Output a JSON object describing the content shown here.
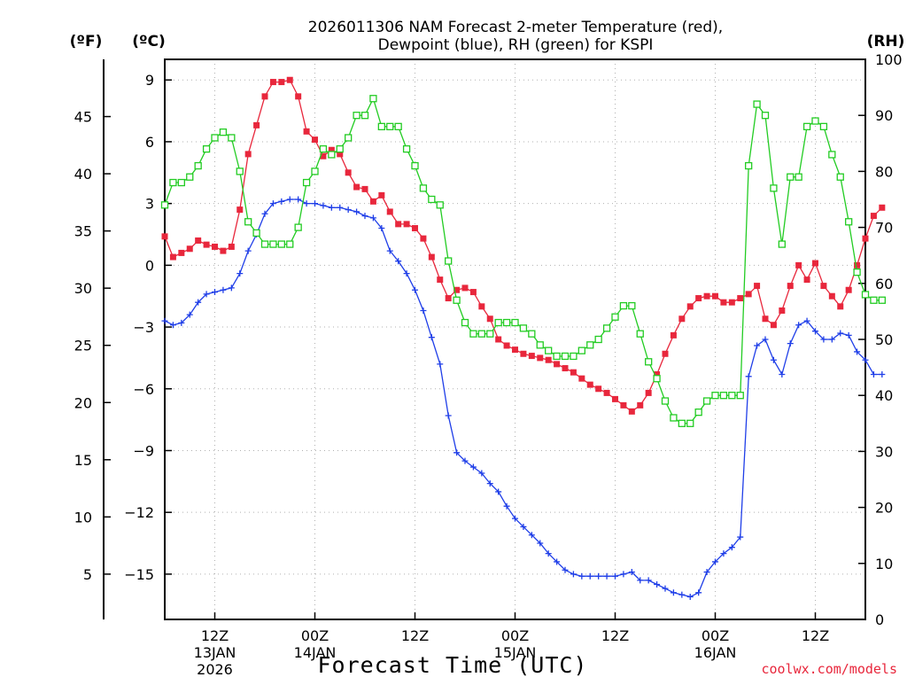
{
  "chart_data": {
    "type": "line",
    "title_line1": "2026011306 NAM Forecast 2-meter Temperature (red),",
    "title_line2": "Dewpoint (blue), RH (green) for KSPI",
    "unit_f": "(ºF)",
    "unit_c": "(ºC)",
    "unit_rh": "(RH)",
    "xlabel": "Forecast Time (UTC)",
    "credit": "coolwx.com/models",
    "x_range_hours": [
      6,
      90
    ],
    "y_c_range": [
      -17.2,
      10.0
    ],
    "rh_range": [
      0,
      100
    ],
    "f_ticks": [
      "5",
      "10",
      "15",
      "20",
      "25",
      "30",
      "35",
      "40",
      "45"
    ],
    "c_ticks": [
      "−15",
      "−12",
      "−9",
      "−6",
      "−3",
      "0",
      "3",
      "6",
      "9"
    ],
    "rh_ticks": [
      "0",
      "10",
      "20",
      "30",
      "40",
      "50",
      "60",
      "70",
      "80",
      "90",
      "100"
    ],
    "x_ticks": [
      {
        "hour": 12,
        "l1": "12Z",
        "l2": "13JAN",
        "l3": "2026"
      },
      {
        "hour": 24,
        "l1": "00Z",
        "l2": "14JAN",
        "l3": ""
      },
      {
        "hour": 36,
        "l1": "12Z",
        "l2": "",
        "l3": ""
      },
      {
        "hour": 48,
        "l1": "00Z",
        "l2": "15JAN",
        "l3": ""
      },
      {
        "hour": 60,
        "l1": "12Z",
        "l2": "",
        "l3": ""
      },
      {
        "hour": 72,
        "l1": "00Z",
        "l2": "16JAN",
        "l3": ""
      },
      {
        "hour": 84,
        "l1": "12Z",
        "l2": "",
        "l3": ""
      }
    ],
    "series": [
      {
        "name": "Temperature",
        "unit": "C",
        "color": "#e8273c",
        "marker": "filled-square",
        "points": [
          [
            6,
            1.4
          ],
          [
            7,
            0.4
          ],
          [
            8,
            0.6
          ],
          [
            9,
            0.8
          ],
          [
            10,
            1.2
          ],
          [
            11,
            1.0
          ],
          [
            12,
            0.9
          ],
          [
            13,
            0.7
          ],
          [
            14,
            0.9
          ],
          [
            15,
            2.7
          ],
          [
            16,
            5.4
          ],
          [
            17,
            6.8
          ],
          [
            18,
            8.2
          ],
          [
            19,
            8.9
          ],
          [
            20,
            8.9
          ],
          [
            21,
            9.0
          ],
          [
            22,
            8.2
          ],
          [
            23,
            6.5
          ],
          [
            24,
            6.1
          ],
          [
            25,
            5.3
          ],
          [
            26,
            5.6
          ],
          [
            27,
            5.4
          ],
          [
            28,
            4.5
          ],
          [
            29,
            3.8
          ],
          [
            30,
            3.7
          ],
          [
            31,
            3.1
          ],
          [
            32,
            3.4
          ],
          [
            33,
            2.6
          ],
          [
            34,
            2.0
          ],
          [
            35,
            2.0
          ],
          [
            36,
            1.8
          ],
          [
            37,
            1.3
          ],
          [
            38,
            0.4
          ],
          [
            39,
            -0.7
          ],
          [
            40,
            -1.6
          ],
          [
            41,
            -1.2
          ],
          [
            42,
            -1.1
          ],
          [
            43,
            -1.3
          ],
          [
            44,
            -2.0
          ],
          [
            45,
            -2.6
          ],
          [
            46,
            -3.6
          ],
          [
            47,
            -3.9
          ],
          [
            48,
            -4.1
          ],
          [
            49,
            -4.3
          ],
          [
            50,
            -4.4
          ],
          [
            51,
            -4.5
          ],
          [
            52,
            -4.6
          ],
          [
            53,
            -4.8
          ],
          [
            54,
            -5.0
          ],
          [
            55,
            -5.2
          ],
          [
            56,
            -5.5
          ],
          [
            57,
            -5.8
          ],
          [
            58,
            -6.0
          ],
          [
            59,
            -6.2
          ],
          [
            60,
            -6.5
          ],
          [
            61,
            -6.8
          ],
          [
            62,
            -7.1
          ],
          [
            63,
            -6.8
          ],
          [
            64,
            -6.2
          ],
          [
            65,
            -5.3
          ],
          [
            66,
            -4.3
          ],
          [
            67,
            -3.4
          ],
          [
            68,
            -2.6
          ],
          [
            69,
            -2.0
          ],
          [
            70,
            -1.6
          ],
          [
            71,
            -1.5
          ],
          [
            72,
            -1.5
          ],
          [
            73,
            -1.8
          ],
          [
            74,
            -1.8
          ],
          [
            75,
            -1.6
          ],
          [
            76,
            -1.4
          ],
          [
            77,
            -1.0
          ],
          [
            78,
            -2.6
          ],
          [
            79,
            -2.9
          ],
          [
            80,
            -2.2
          ],
          [
            81,
            -1.0
          ],
          [
            82,
            0.0
          ],
          [
            83,
            -0.7
          ],
          [
            84,
            0.1
          ],
          [
            85,
            -1.0
          ],
          [
            86,
            -1.5
          ],
          [
            87,
            -2.0
          ],
          [
            88,
            -1.2
          ],
          [
            89,
            0.0
          ],
          [
            90,
            1.3
          ],
          [
            91,
            2.4
          ],
          [
            92,
            2.8
          ]
        ]
      },
      {
        "name": "Dewpoint",
        "unit": "C",
        "color": "#1f3ee8",
        "marker": "plus",
        "points": [
          [
            6,
            -2.7
          ],
          [
            7,
            -2.9
          ],
          [
            8,
            -2.8
          ],
          [
            9,
            -2.4
          ],
          [
            10,
            -1.8
          ],
          [
            11,
            -1.4
          ],
          [
            12,
            -1.3
          ],
          [
            13,
            -1.2
          ],
          [
            14,
            -1.1
          ],
          [
            15,
            -0.4
          ],
          [
            16,
            0.7
          ],
          [
            17,
            1.5
          ],
          [
            18,
            2.5
          ],
          [
            19,
            3.0
          ],
          [
            20,
            3.1
          ],
          [
            21,
            3.2
          ],
          [
            22,
            3.2
          ],
          [
            23,
            3.0
          ],
          [
            24,
            3.0
          ],
          [
            25,
            2.9
          ],
          [
            26,
            2.8
          ],
          [
            27,
            2.8
          ],
          [
            28,
            2.7
          ],
          [
            29,
            2.6
          ],
          [
            30,
            2.4
          ],
          [
            31,
            2.3
          ],
          [
            32,
            1.8
          ],
          [
            33,
            0.7
          ],
          [
            34,
            0.2
          ],
          [
            35,
            -0.4
          ],
          [
            36,
            -1.2
          ],
          [
            37,
            -2.2
          ],
          [
            38,
            -3.5
          ],
          [
            39,
            -4.8
          ],
          [
            40,
            -7.3
          ],
          [
            41,
            -9.1
          ],
          [
            42,
            -9.5
          ],
          [
            43,
            -9.8
          ],
          [
            44,
            -10.1
          ],
          [
            45,
            -10.6
          ],
          [
            46,
            -11.0
          ],
          [
            47,
            -11.7
          ],
          [
            48,
            -12.3
          ],
          [
            49,
            -12.7
          ],
          [
            50,
            -13.1
          ],
          [
            51,
            -13.5
          ],
          [
            52,
            -14.0
          ],
          [
            53,
            -14.4
          ],
          [
            54,
            -14.8
          ],
          [
            55,
            -15.0
          ],
          [
            56,
            -15.1
          ],
          [
            57,
            -15.1
          ],
          [
            58,
            -15.1
          ],
          [
            59,
            -15.1
          ],
          [
            60,
            -15.1
          ],
          [
            61,
            -15.0
          ],
          [
            62,
            -14.9
          ],
          [
            63,
            -15.3
          ],
          [
            64,
            -15.3
          ],
          [
            65,
            -15.5
          ],
          [
            66,
            -15.7
          ],
          [
            67,
            -15.9
          ],
          [
            68,
            -16.0
          ],
          [
            69,
            -16.1
          ],
          [
            70,
            -15.9
          ],
          [
            71,
            -14.9
          ],
          [
            72,
            -14.4
          ],
          [
            73,
            -14.0
          ],
          [
            74,
            -13.7
          ],
          [
            75,
            -13.2
          ],
          [
            76,
            -5.4
          ],
          [
            77,
            -3.9
          ],
          [
            78,
            -3.6
          ],
          [
            79,
            -4.6
          ],
          [
            80,
            -5.3
          ],
          [
            81,
            -3.8
          ],
          [
            82,
            -2.9
          ],
          [
            83,
            -2.7
          ],
          [
            84,
            -3.2
          ],
          [
            85,
            -3.6
          ],
          [
            86,
            -3.6
          ],
          [
            87,
            -3.3
          ],
          [
            88,
            -3.4
          ],
          [
            89,
            -4.2
          ],
          [
            90,
            -4.6
          ],
          [
            91,
            -5.3
          ],
          [
            92,
            -5.3
          ]
        ]
      },
      {
        "name": "RH",
        "unit": "%",
        "color": "#22cc22",
        "marker": "open-square",
        "points": [
          [
            6,
            74
          ],
          [
            7,
            78
          ],
          [
            8,
            78
          ],
          [
            9,
            79
          ],
          [
            10,
            81
          ],
          [
            11,
            84
          ],
          [
            12,
            86
          ],
          [
            13,
            87
          ],
          [
            14,
            86
          ],
          [
            15,
            80
          ],
          [
            16,
            71
          ],
          [
            17,
            69
          ],
          [
            18,
            67
          ],
          [
            19,
            67
          ],
          [
            20,
            67
          ],
          [
            21,
            67
          ],
          [
            22,
            70
          ],
          [
            23,
            78
          ],
          [
            24,
            80
          ],
          [
            25,
            84
          ],
          [
            26,
            83
          ],
          [
            27,
            84
          ],
          [
            28,
            86
          ],
          [
            29,
            90
          ],
          [
            30,
            90
          ],
          [
            31,
            93
          ],
          [
            32,
            88
          ],
          [
            33,
            88
          ],
          [
            34,
            88
          ],
          [
            35,
            84
          ],
          [
            36,
            81
          ],
          [
            37,
            77
          ],
          [
            38,
            75
          ],
          [
            39,
            74
          ],
          [
            40,
            64
          ],
          [
            41,
            57
          ],
          [
            42,
            53
          ],
          [
            43,
            51
          ],
          [
            44,
            51
          ],
          [
            45,
            51
          ],
          [
            46,
            53
          ],
          [
            47,
            53
          ],
          [
            48,
            53
          ],
          [
            49,
            52
          ],
          [
            50,
            51
          ],
          [
            51,
            49
          ],
          [
            52,
            48
          ],
          [
            53,
            47
          ],
          [
            54,
            47
          ],
          [
            55,
            47
          ],
          [
            56,
            48
          ],
          [
            57,
            49
          ],
          [
            58,
            50
          ],
          [
            59,
            52
          ],
          [
            60,
            54
          ],
          [
            61,
            56
          ],
          [
            62,
            56
          ],
          [
            63,
            51
          ],
          [
            64,
            46
          ],
          [
            65,
            43
          ],
          [
            66,
            39
          ],
          [
            67,
            36
          ],
          [
            68,
            35
          ],
          [
            69,
            35
          ],
          [
            70,
            37
          ],
          [
            71,
            39
          ],
          [
            72,
            40
          ],
          [
            73,
            40
          ],
          [
            74,
            40
          ],
          [
            75,
            40
          ],
          [
            76,
            81
          ],
          [
            77,
            92
          ],
          [
            78,
            90
          ],
          [
            79,
            77
          ],
          [
            80,
            67
          ],
          [
            81,
            79
          ],
          [
            82,
            79
          ],
          [
            83,
            88
          ],
          [
            84,
            89
          ],
          [
            85,
            88
          ],
          [
            86,
            83
          ],
          [
            87,
            79
          ],
          [
            88,
            71
          ],
          [
            89,
            62
          ],
          [
            90,
            58
          ],
          [
            91,
            57
          ],
          [
            92,
            57
          ]
        ]
      }
    ]
  }
}
